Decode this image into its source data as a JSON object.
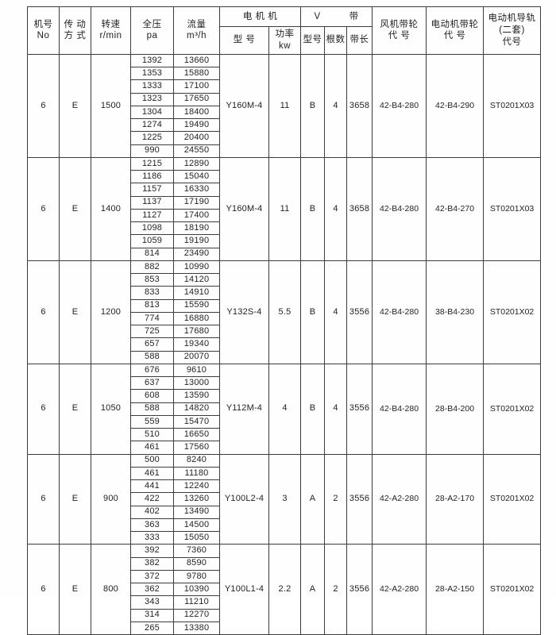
{
  "table": {
    "header": {
      "machine_no": "机号\nNo",
      "drive": "传 动\n方 式",
      "speed": "转速\nr/min",
      "pressure": "全压\npa",
      "flow": "流量\nm³/h",
      "motor_group": "电  机  机",
      "motor_model": "型 号",
      "motor_power": "功率kw",
      "vbelt_group": "V　　　带",
      "vbelt_model": "型号",
      "vbelt_count": "根数",
      "vbelt_length": "带长",
      "fan_pulley": "风机带轮\n代  号",
      "motor_pulley": "电动机带轮\n代  号",
      "motor_rail": "电动机导轨\n(二套)\n代号"
    },
    "groups": [
      {
        "machine_no": "6",
        "drive": "E",
        "speed": "1500",
        "rows": [
          [
            "1392",
            "13660"
          ],
          [
            "1353",
            "15880"
          ],
          [
            "1333",
            "17100"
          ],
          [
            "1323",
            "17650"
          ],
          [
            "1304",
            "18400"
          ],
          [
            "1274",
            "19490"
          ],
          [
            "1225",
            "20400"
          ],
          [
            "990",
            "24550"
          ]
        ],
        "motor_model": "Y160M-4",
        "motor_power": "11",
        "vbelt_model": "B",
        "vbelt_count": "4",
        "vbelt_length": "3658",
        "fan_pulley": "42-B4-280",
        "motor_pulley": "42-B4-290",
        "motor_rail": "ST0201X03"
      },
      {
        "machine_no": "6",
        "drive": "E",
        "speed": "1400",
        "rows": [
          [
            "1215",
            "12890"
          ],
          [
            "1186",
            "15040"
          ],
          [
            "1157",
            "16330"
          ],
          [
            "1137",
            "17190"
          ],
          [
            "1127",
            "17400"
          ],
          [
            "1098",
            "18190"
          ],
          [
            "1059",
            "19190"
          ],
          [
            "814",
            "23490"
          ]
        ],
        "motor_model": "Y160M-4",
        "motor_power": "11",
        "vbelt_model": "B",
        "vbelt_count": "4",
        "vbelt_length": "3658",
        "fan_pulley": "42-B4-280",
        "motor_pulley": "42-B4-270",
        "motor_rail": "ST0201X03"
      },
      {
        "machine_no": "6",
        "drive": "E",
        "speed": "1200",
        "rows": [
          [
            "882",
            "10990"
          ],
          [
            "853",
            "14120"
          ],
          [
            "833",
            "14910"
          ],
          [
            "813",
            "15590"
          ],
          [
            "774",
            "16880"
          ],
          [
            "725",
            "17680"
          ],
          [
            "657",
            "19340"
          ],
          [
            "588",
            "20070"
          ]
        ],
        "motor_model": "Y132S-4",
        "motor_power": "5.5",
        "vbelt_model": "B",
        "vbelt_count": "4",
        "vbelt_length": "3556",
        "fan_pulley": "42-B4-280",
        "motor_pulley": "38-B4-230",
        "motor_rail": "ST0201X02"
      },
      {
        "machine_no": "6",
        "drive": "E",
        "speed": "1050",
        "rows": [
          [
            "676",
            "9610"
          ],
          [
            "637",
            "13000"
          ],
          [
            "608",
            "13590"
          ],
          [
            "588",
            "14820"
          ],
          [
            "559",
            "15470"
          ],
          [
            "510",
            "16650"
          ],
          [
            "461",
            "17560"
          ]
        ],
        "motor_model": "Y112M-4",
        "motor_power": "4",
        "vbelt_model": "B",
        "vbelt_count": "4",
        "vbelt_length": "3556",
        "fan_pulley": "42-B4-280",
        "motor_pulley": "28-B4-200",
        "motor_rail": "ST0201X02"
      },
      {
        "machine_no": "6",
        "drive": "E",
        "speed": "900",
        "rows": [
          [
            "500",
            "8240"
          ],
          [
            "461",
            "11180"
          ],
          [
            "441",
            "12240"
          ],
          [
            "422",
            "13260"
          ],
          [
            "402",
            "13490"
          ],
          [
            "363",
            "14500"
          ],
          [
            "333",
            "15050"
          ]
        ],
        "motor_model": "Y100L2-4",
        "motor_power": "3",
        "vbelt_model": "A",
        "vbelt_count": "2",
        "vbelt_length": "3556",
        "fan_pulley": "42-A2-280",
        "motor_pulley": "28-A2-170",
        "motor_rail": "ST0201X02"
      },
      {
        "machine_no": "6",
        "drive": "E",
        "speed": "800",
        "rows": [
          [
            "392",
            "7360"
          ],
          [
            "382",
            "8590"
          ],
          [
            "372",
            "9780"
          ],
          [
            "362",
            "10390"
          ],
          [
            "343",
            "11210"
          ],
          [
            "314",
            "12270"
          ],
          [
            "265",
            "13380"
          ]
        ],
        "motor_model": "Y100L1-4",
        "motor_power": "2.2",
        "vbelt_model": "A",
        "vbelt_count": "2",
        "vbelt_length": "3556",
        "fan_pulley": "42-A2-280",
        "motor_pulley": "28-A2-150",
        "motor_rail": "ST0201X02"
      }
    ]
  },
  "colors": {
    "border": "#3c3c3c",
    "text": "#232323",
    "background": "#fefefe"
  }
}
